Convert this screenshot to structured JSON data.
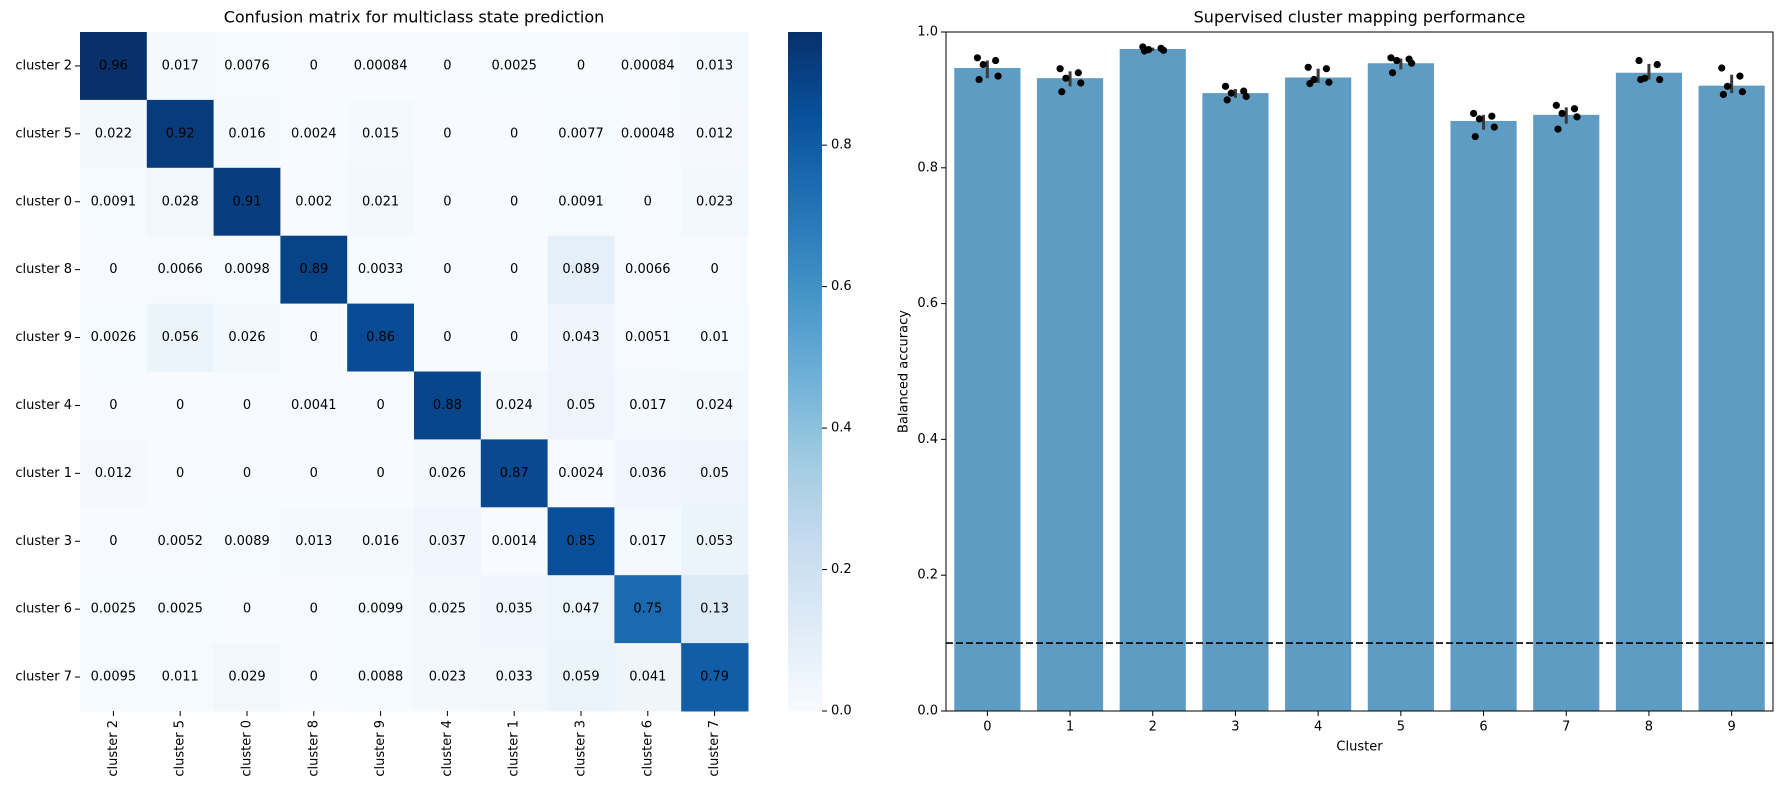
{
  "chart_data": [
    {
      "type": "heatmap",
      "title": "Confusion matrix for multiclass state prediction",
      "row_labels": [
        "cluster 2",
        "cluster 5",
        "cluster 0",
        "cluster 8",
        "cluster 9",
        "cluster 4",
        "cluster 1",
        "cluster 3",
        "cluster 6",
        "cluster 7"
      ],
      "col_labels": [
        "cluster 2",
        "cluster 5",
        "cluster 0",
        "cluster 8",
        "cluster 9",
        "cluster 4",
        "cluster 1",
        "cluster 3",
        "cluster 6",
        "cluster 7"
      ],
      "values": [
        [
          0.96,
          0.017,
          0.0076,
          0,
          0.00084,
          0,
          0.0025,
          0,
          0.00084,
          0.013
        ],
        [
          0.022,
          0.92,
          0.016,
          0.0024,
          0.015,
          0,
          0,
          0.0077,
          0.00048,
          0.012
        ],
        [
          0.0091,
          0.028,
          0.91,
          0.002,
          0.021,
          0,
          0,
          0.0091,
          0,
          0.023
        ],
        [
          0,
          0.0066,
          0.0098,
          0.89,
          0.0033,
          0,
          0,
          0.089,
          0.0066,
          0
        ],
        [
          0.0026,
          0.056,
          0.026,
          0,
          0.86,
          0,
          0,
          0.043,
          0.0051,
          0.01
        ],
        [
          0,
          0,
          0,
          0.0041,
          0,
          0.88,
          0.024,
          0.05,
          0.017,
          0.024
        ],
        [
          0.012,
          0,
          0,
          0,
          0,
          0.026,
          0.87,
          0.0024,
          0.036,
          0.05
        ],
        [
          0,
          0.0052,
          0.0089,
          0.013,
          0.016,
          0.037,
          0.0014,
          0.85,
          0.017,
          0.053
        ],
        [
          0.0025,
          0.0025,
          0,
          0,
          0.0099,
          0.025,
          0.035,
          0.047,
          0.75,
          0.13
        ],
        [
          0.0095,
          0.011,
          0.029,
          0,
          0.0088,
          0.023,
          0.033,
          0.059,
          0.041,
          0.79
        ]
      ],
      "colormap": "Blues",
      "clim": [
        0,
        0.96
      ],
      "colorbar_ticks": [
        {
          "value": 0,
          "label": "0.0"
        },
        0.2,
        0.4,
        0.6,
        0.8
      ]
    },
    {
      "type": "bar",
      "title": "Supervised cluster mapping performance",
      "xlabel": "Cluster",
      "ylabel": "Balanced accuracy",
      "categories": [
        "0",
        "1",
        "2",
        "3",
        "4",
        "5",
        "6",
        "7",
        "8",
        "9"
      ],
      "values": [
        0.947,
        0.932,
        0.975,
        0.91,
        0.933,
        0.954,
        0.869,
        0.878,
        0.94,
        0.921
      ],
      "ci_low": [
        0.932,
        0.92,
        0.972,
        0.903,
        0.925,
        0.945,
        0.856,
        0.865,
        0.93,
        0.91
      ],
      "ci_high": [
        0.958,
        0.942,
        0.977,
        0.916,
        0.946,
        0.961,
        0.878,
        0.889,
        0.953,
        0.937
      ],
      "points": [
        [
          0.962,
          0.958,
          0.952,
          0.935,
          0.93
        ],
        [
          0.946,
          0.94,
          0.932,
          0.925,
          0.912
        ],
        [
          0.978,
          0.976,
          0.974,
          0.973,
          0.972
        ],
        [
          0.92,
          0.913,
          0.91,
          0.905,
          0.9
        ],
        [
          0.948,
          0.946,
          0.93,
          0.926,
          0.924
        ],
        [
          0.962,
          0.96,
          0.958,
          0.954,
          0.94
        ],
        [
          0.88,
          0.876,
          0.872,
          0.86,
          0.846
        ],
        [
          0.892,
          0.887,
          0.88,
          0.875,
          0.857
        ],
        [
          0.958,
          0.952,
          0.932,
          0.93,
          0.93
        ],
        [
          0.947,
          0.935,
          0.92,
          0.912,
          0.908
        ]
      ],
      "color": "#5f9cc3",
      "point_color": "#000000",
      "hline": 0.1,
      "ylim": [
        0,
        1
      ],
      "yticks": [
        {
          "value": 0,
          "label": "0.0"
        },
        0.2,
        0.4,
        0.6,
        0.8,
        {
          "value": 1,
          "label": "1.0"
        }
      ]
    }
  ]
}
